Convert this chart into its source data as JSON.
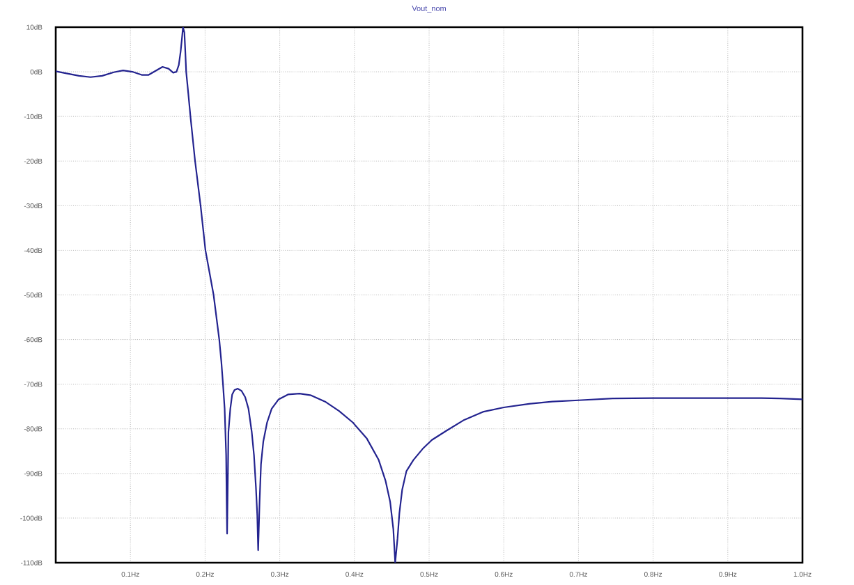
{
  "chart_data": {
    "type": "line",
    "title": "Vout_nom",
    "x": [
      0,
      0.0156,
      0.0311,
      0.0466,
      0.0622,
      0.0777,
      0.0902,
      0.1026,
      0.1151,
      0.1244,
      0.1337,
      0.143,
      0.1511,
      0.1573,
      0.1617,
      0.1648,
      0.1673,
      0.1692,
      0.1704,
      0.1723,
      0.1735,
      0.1747,
      0.1776,
      0.1804,
      0.1866,
      0.194,
      0.2005,
      0.2114,
      0.219,
      0.2218,
      0.224,
      0.2262,
      0.2282,
      0.2289,
      0.2295,
      0.2313,
      0.2338,
      0.2363,
      0.2394,
      0.2438,
      0.2488,
      0.2537,
      0.2581,
      0.2625,
      0.2655,
      0.2681,
      0.2699,
      0.2711,
      0.273,
      0.2749,
      0.278,
      0.283,
      0.2892,
      0.2985,
      0.311,
      0.3265,
      0.342,
      0.3607,
      0.3794,
      0.398,
      0.4167,
      0.4323,
      0.4416,
      0.4478,
      0.4521,
      0.4546,
      0.4577,
      0.4602,
      0.464,
      0.4696,
      0.4789,
      0.4913,
      0.5037,
      0.5224,
      0.547,
      0.572,
      0.6,
      0.634,
      0.665,
      0.7,
      0.746,
      0.8,
      0.9,
      0.945,
      0.97,
      1
    ],
    "series": [
      {
        "color": "#23238f",
        "values": [
          0.1,
          -0.4,
          -0.9,
          -1.2,
          -0.9,
          -0.1,
          0.3,
          0,
          -0.7,
          -0.7,
          0.2,
          1.1,
          0.7,
          -0.2,
          0,
          1.5,
          4.6,
          7.8,
          10,
          8.8,
          4.6,
          0,
          -5,
          -10,
          -20,
          -30,
          -40,
          -50,
          -60,
          -65,
          -70,
          -75.5,
          -85.9,
          -96.3,
          -103.5,
          -80.7,
          -75.5,
          -72.3,
          -71.3,
          -71,
          -71.5,
          -72.9,
          -75.5,
          -80.7,
          -85.9,
          -93.1,
          -99.4,
          -107.2,
          -96.3,
          -87.9,
          -82.8,
          -78.6,
          -75.5,
          -73.4,
          -72.3,
          -72.1,
          -72.5,
          -73.9,
          -76,
          -78.6,
          -82.2,
          -86.9,
          -91.6,
          -96.3,
          -102.5,
          -110,
          -104.6,
          -98.9,
          -93.6,
          -89.5,
          -87,
          -84.5,
          -82.5,
          -80.5,
          -78,
          -76.2,
          -75.2,
          -74.4,
          -73.9,
          -73.6,
          -73.2,
          -73.1,
          -73.1,
          -73.1,
          -73.2,
          -73.4
        ]
      }
    ],
    "xlim": [
      0,
      1
    ],
    "ylim": [
      -110,
      10
    ],
    "xticks": [
      {
        "value": 0.1,
        "label": "0.1Hz"
      },
      {
        "value": 0.2,
        "label": "0.2Hz"
      },
      {
        "value": 0.3,
        "label": "0.3Hz"
      },
      {
        "value": 0.4,
        "label": "0.4Hz"
      },
      {
        "value": 0.5,
        "label": "0.5Hz"
      },
      {
        "value": 0.6,
        "label": "0.6Hz"
      },
      {
        "value": 0.7,
        "label": "0.7Hz"
      },
      {
        "value": 0.8,
        "label": "0.8Hz"
      },
      {
        "value": 0.9,
        "label": "0.9Hz"
      },
      {
        "value": 1,
        "label": "1.0Hz"
      }
    ],
    "yticks": [
      {
        "value": 10,
        "label": "10dB"
      },
      {
        "value": 0,
        "label": "0dB"
      },
      {
        "value": -10,
        "label": "-10dB"
      },
      {
        "value": -20,
        "label": "-20dB"
      },
      {
        "value": -30,
        "label": "-30dB"
      },
      {
        "value": -40,
        "label": "-40dB"
      },
      {
        "value": -50,
        "label": "-50dB"
      },
      {
        "value": -60,
        "label": "-60dB"
      },
      {
        "value": -70,
        "label": "-70dB"
      },
      {
        "value": -80,
        "label": "-80dB"
      },
      {
        "value": -90,
        "label": "-90dB"
      },
      {
        "value": -100,
        "label": "-100dB"
      },
      {
        "value": -110,
        "label": "-110dB"
      }
    ],
    "grid": true
  }
}
